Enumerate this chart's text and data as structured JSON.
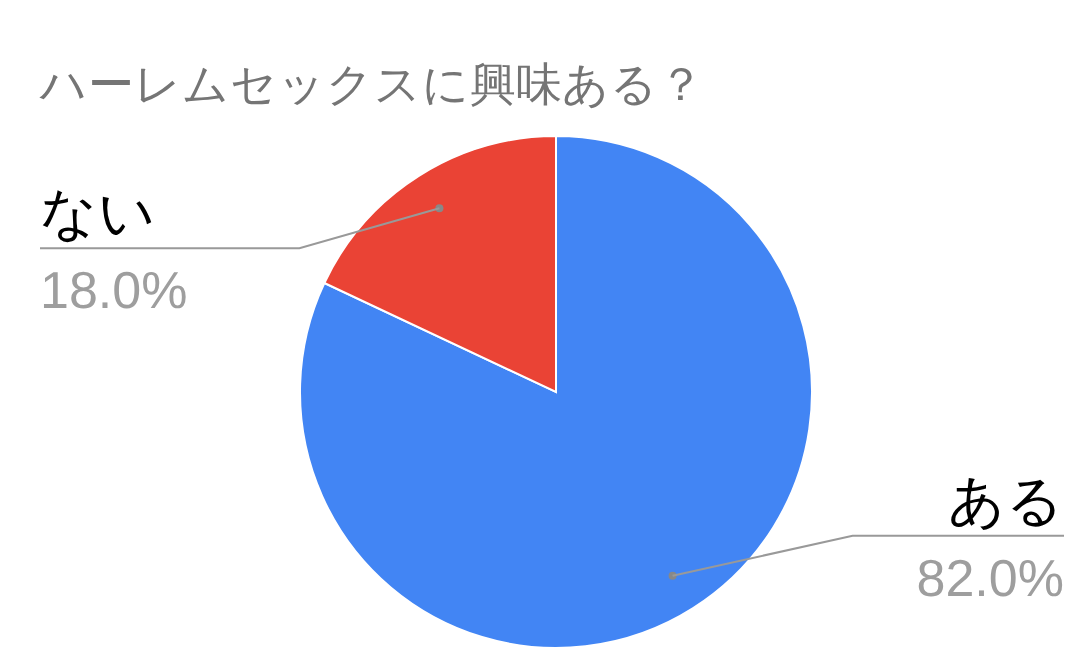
{
  "chart_data": {
    "type": "pie",
    "title": "ハーレムセックスに興味ある？",
    "categories": [
      "ある",
      "ない"
    ],
    "values": [
      82.0,
      18.0
    ],
    "colors": [
      "#4285f4",
      "#ea4335"
    ],
    "value_labels": [
      "82.0%",
      "18.0%"
    ],
    "legend": false
  }
}
